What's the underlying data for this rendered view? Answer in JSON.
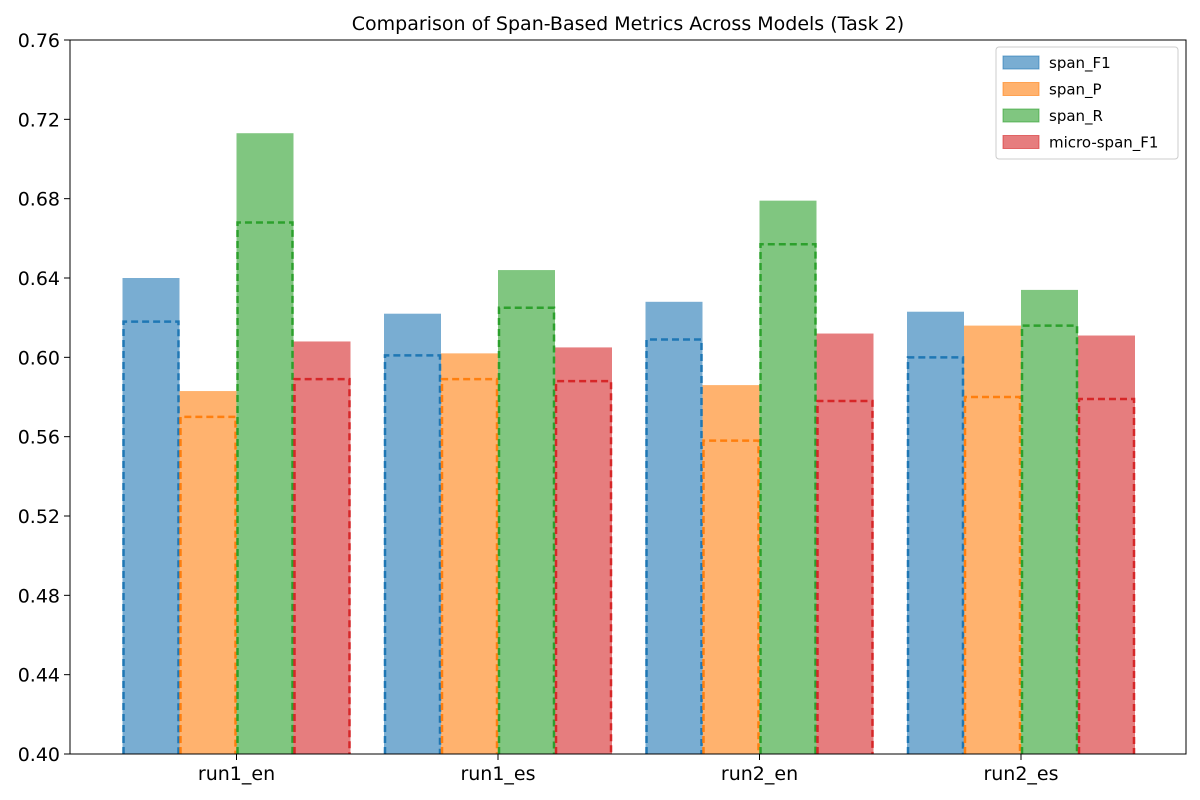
{
  "chart_data": {
    "type": "bar",
    "title": "Comparison of Span-Based Metrics Across Models (Task 2)",
    "xlabel": "",
    "ylabel": "",
    "categories": [
      "run1_en",
      "run1_es",
      "run2_en",
      "run2_es"
    ],
    "ylim": [
      0.4,
      0.76
    ],
    "yticks": [
      "0.40",
      "0.44",
      "0.48",
      "0.52",
      "0.56",
      "0.60",
      "0.64",
      "0.68",
      "0.72",
      "0.76"
    ],
    "grid": false,
    "legend_position": "top-right",
    "series": [
      {
        "name": "span_F1",
        "color": "#1f77b4",
        "values": [
          0.64,
          0.622,
          0.628,
          0.623
        ],
        "dashed_values": [
          0.618,
          0.601,
          0.609,
          0.6
        ]
      },
      {
        "name": "span_P",
        "color": "#ff7f0e",
        "values": [
          0.583,
          0.602,
          0.586,
          0.616
        ],
        "dashed_values": [
          0.57,
          0.589,
          0.558,
          0.58
        ]
      },
      {
        "name": "span_R",
        "color": "#2ca02c",
        "values": [
          0.713,
          0.644,
          0.679,
          0.634
        ],
        "dashed_values": [
          0.668,
          0.625,
          0.657,
          0.616
        ]
      },
      {
        "name": "micro-span_F1",
        "color": "#d62728",
        "values": [
          0.608,
          0.605,
          0.612,
          0.611
        ],
        "dashed_values": [
          0.589,
          0.588,
          0.578,
          0.579
        ]
      }
    ]
  }
}
